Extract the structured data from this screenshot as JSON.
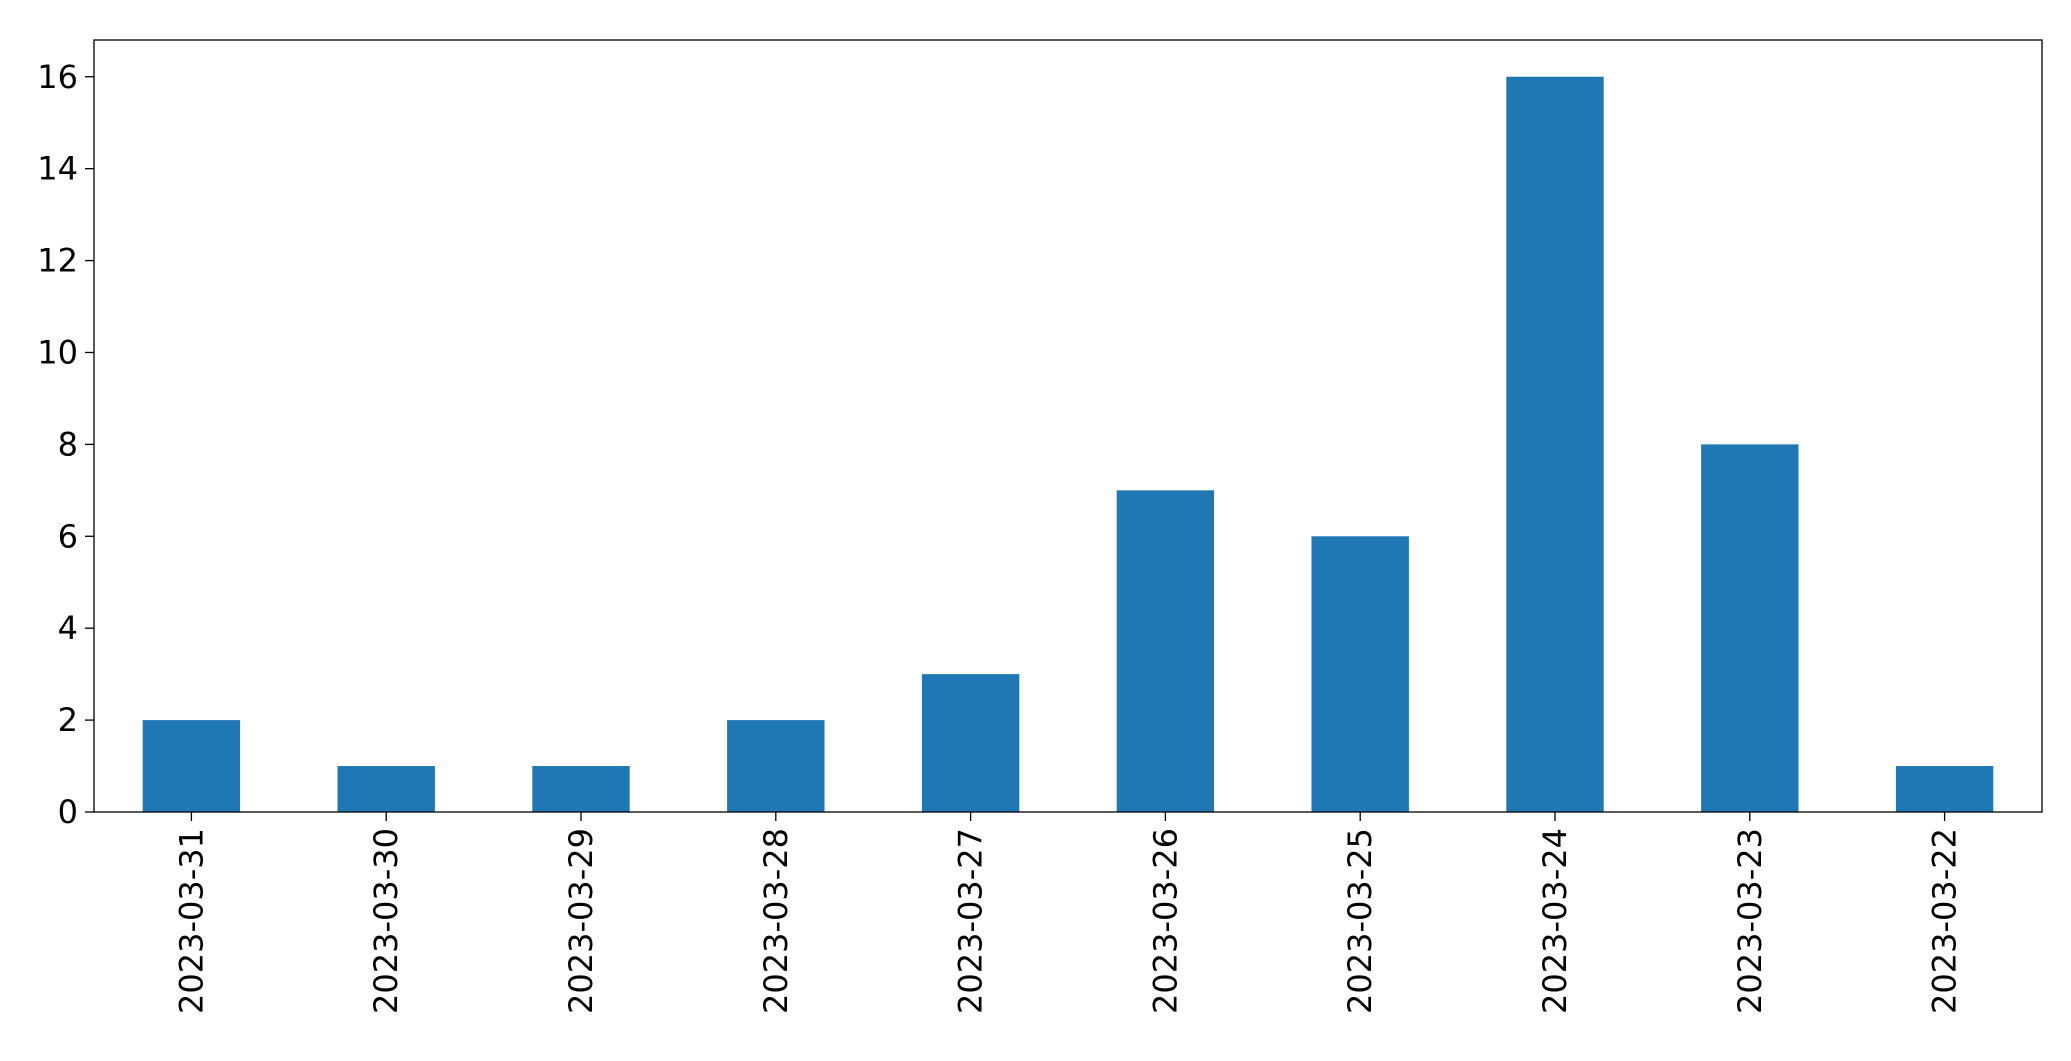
{
  "chart_data": {
    "type": "bar",
    "categories": [
      "2023-03-31",
      "2023-03-30",
      "2023-03-29",
      "2023-03-28",
      "2023-03-27",
      "2023-03-26",
      "2023-03-25",
      "2023-03-24",
      "2023-03-23",
      "2023-03-22"
    ],
    "values": [
      2,
      1,
      1,
      2,
      3,
      7,
      6,
      16,
      8,
      1
    ],
    "color": "#1f77b4",
    "ylim": [
      0,
      16.8
    ],
    "yticks": [
      0,
      2,
      4,
      6,
      8,
      10,
      12,
      14,
      16
    ],
    "grid": false
  }
}
